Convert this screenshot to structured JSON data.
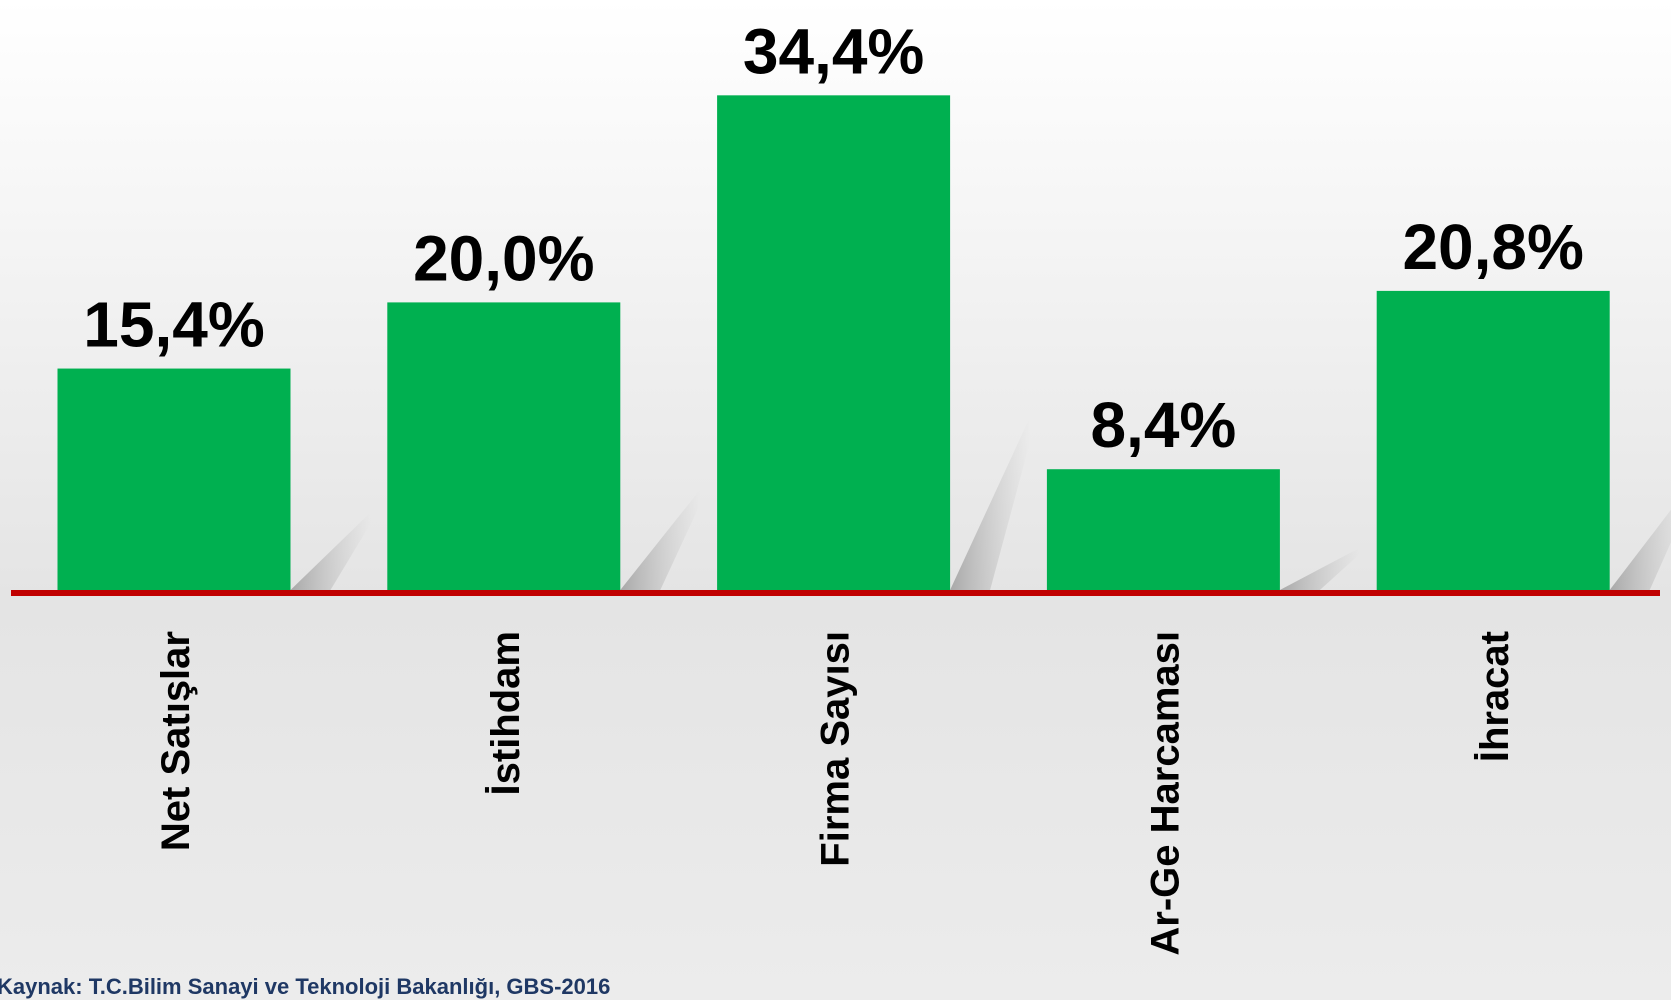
{
  "chart_data": {
    "type": "bar",
    "categories": [
      "Net Satışlar",
      "İstihdam",
      "Firma Sayısı",
      "Ar-Ge Harcaması",
      "İhracat"
    ],
    "values": [
      15.4,
      20.0,
      34.4,
      8.4,
      20.8
    ],
    "value_labels": [
      "15,4%",
      "20,0%",
      "34,4%",
      "8,4%",
      "20,8%"
    ],
    "color": "#00b050",
    "source": "Kaynak: T.C.Bilim Sanayi ve Teknoloji Bakanlığı, GBS-2016"
  }
}
